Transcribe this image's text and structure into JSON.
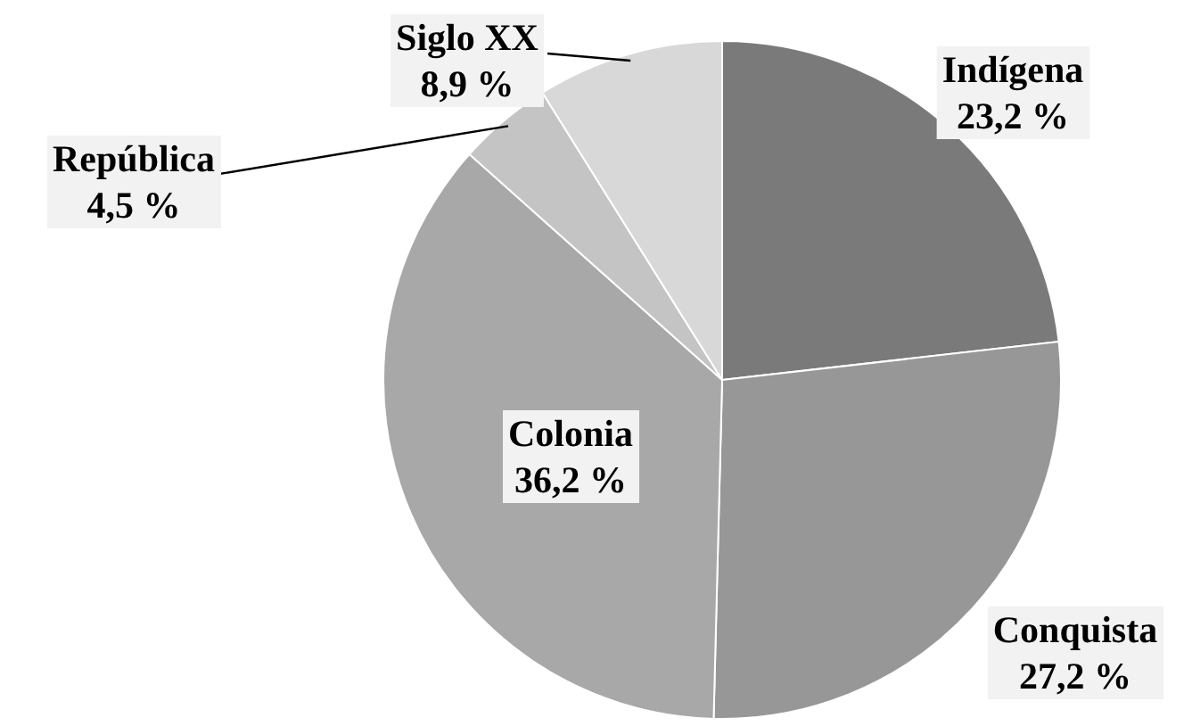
{
  "chart_data": {
    "type": "pie",
    "categories": [
      "Indígena",
      "Conquista",
      "Colonia",
      "República",
      "Siglo XX"
    ],
    "values": [
      23.2,
      27.2,
      36.2,
      4.5,
      8.9
    ],
    "value_labels": [
      "23,2 %",
      "27,2 %",
      "36,2 %",
      "4,5 %",
      "8,9 %"
    ],
    "colors": [
      "#7a7a7a",
      "#979797",
      "#a8a8a8",
      "#c4c4c4",
      "#d8d8d8"
    ]
  }
}
